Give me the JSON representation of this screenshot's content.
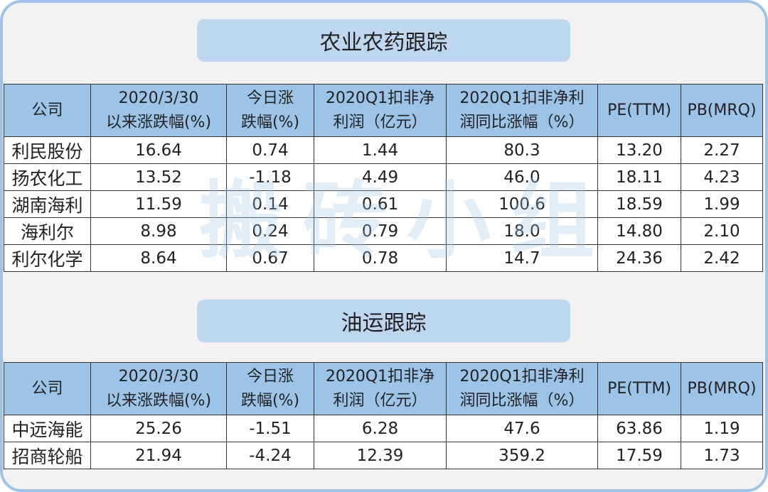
{
  "colors": {
    "border": "#9dc3e6",
    "header": "#9dc3e6",
    "title_bg": "#bdd7ee",
    "background": "#f2f2f2"
  },
  "watermark": "搬砖小组",
  "headers": [
    "公司",
    "2020/3/30\n以来涨跌幅(%)",
    "今日涨\n跌幅(%)",
    "2020Q1扣非净\n利润（亿元）",
    "2020Q1扣非净利\n润同比涨幅（%）",
    "PE(TTM)",
    "PB(MRQ)"
  ],
  "sections": [
    {
      "title": "农业农药跟踪",
      "rows": [
        [
          "利民股份",
          "16.64",
          "0.74",
          "1.44",
          "80.3",
          "13.20",
          "2.27"
        ],
        [
          "扬农化工",
          "13.52",
          "-1.18",
          "4.49",
          "46.0",
          "18.11",
          "4.23"
        ],
        [
          "湖南海利",
          "11.59",
          "0.14",
          "0.61",
          "100.6",
          "18.59",
          "1.99"
        ],
        [
          "海利尔",
          "8.98",
          "0.24",
          "0.79",
          "18.0",
          "14.80",
          "2.10"
        ],
        [
          "利尔化学",
          "8.64",
          "0.67",
          "0.78",
          "14.7",
          "24.36",
          "2.42"
        ]
      ]
    },
    {
      "title": "油运跟踪",
      "rows": [
        [
          "中远海能",
          "25.26",
          "-1.51",
          "6.28",
          "47.6",
          "63.86",
          "1.19"
        ],
        [
          "招商轮船",
          "21.94",
          "-4.24",
          "12.39",
          "359.2",
          "17.59",
          "1.73"
        ]
      ]
    }
  ]
}
